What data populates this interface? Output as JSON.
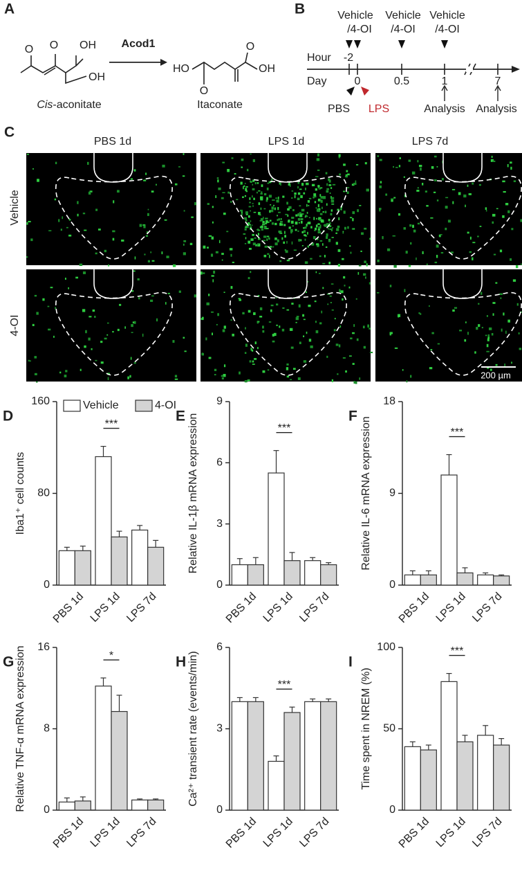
{
  "panel_a": {
    "label": "A",
    "enzyme": "Acod1",
    "substrate_prefix": "Cis",
    "substrate_suffix": "-aconitate",
    "product": "Itaconate",
    "atoms": [
      "O",
      "O",
      "OH",
      "OH",
      "HO",
      "O",
      "O",
      "OH"
    ]
  },
  "panel_b": {
    "label": "B",
    "hour": "Hour",
    "day": "Day",
    "hours": [
      "-2"
    ],
    "days": [
      "0",
      "0.5",
      "1",
      "7"
    ],
    "treatments": [
      [
        "Vehicle",
        "/4-OI"
      ],
      [
        "Vehicle",
        "/4-OI"
      ],
      [
        "Vehicle",
        "/4-OI"
      ]
    ],
    "pbs": "PBS",
    "lps": "LPS",
    "analysis": [
      "Analysis",
      "Analysis"
    ]
  },
  "panel_c": {
    "label": "C",
    "columns": [
      "PBS 1d",
      "LPS 1d",
      "LPS 7d"
    ],
    "rows": [
      "Vehicle",
      "4-OI"
    ],
    "scale_bar": "200 µm"
  },
  "chart_data": [
    {
      "type": "bar",
      "panel": "D",
      "y_label": "Iba1⁺ cell counts",
      "categories": [
        "PBS 1d",
        "LPS 1d",
        "LPS 7d"
      ],
      "series": [
        {
          "name": "Vehicle",
          "color": "#ffffff",
          "values": [
            30,
            112,
            48
          ],
          "errors": [
            3,
            9,
            4
          ]
        },
        {
          "name": "4-OI",
          "color": "#d4d4d4",
          "values": [
            30,
            42,
            33
          ],
          "errors": [
            4,
            5,
            6
          ]
        }
      ],
      "ylim": [
        0,
        160
      ],
      "yticks": [
        0,
        80,
        160
      ],
      "legend": "top-left",
      "annotations": [
        {
          "category": "LPS 1d",
          "text": "***"
        }
      ]
    },
    {
      "type": "bar",
      "panel": "E",
      "y_label": "Relative IL-1β mRNA expression",
      "categories": [
        "PBS 1d",
        "LPS 1d",
        "LPS 7d"
      ],
      "series": [
        {
          "name": "Vehicle",
          "color": "#ffffff",
          "values": [
            1.0,
            5.5,
            1.2
          ],
          "errors": [
            0.3,
            1.1,
            0.15
          ]
        },
        {
          "name": "4-OI",
          "color": "#d4d4d4",
          "values": [
            1.0,
            1.2,
            1.0
          ],
          "errors": [
            0.35,
            0.4,
            0.1
          ]
        }
      ],
      "ylim": [
        0,
        9
      ],
      "yticks": [
        0,
        3,
        6,
        9
      ],
      "annotations": [
        {
          "category": "LPS 1d",
          "text": "***"
        }
      ]
    },
    {
      "type": "bar",
      "panel": "F",
      "y_label": "Relative IL-6 mRNA expression",
      "categories": [
        "PBS 1d",
        "LPS 1d",
        "LPS 7d"
      ],
      "series": [
        {
          "name": "Vehicle",
          "color": "#ffffff",
          "values": [
            1.0,
            10.8,
            1.0
          ],
          "errors": [
            0.4,
            2.0,
            0.2
          ]
        },
        {
          "name": "4-OI",
          "color": "#d4d4d4",
          "values": [
            1.0,
            1.2,
            0.9
          ],
          "errors": [
            0.4,
            0.5,
            0.1
          ]
        }
      ],
      "ylim": [
        0,
        18
      ],
      "yticks": [
        0,
        9,
        18
      ],
      "annotations": [
        {
          "category": "LPS 1d",
          "text": "***"
        }
      ]
    },
    {
      "type": "bar",
      "panel": "G",
      "y_label": "Relative TNF-α mRNA expression",
      "categories": [
        "PBS 1d",
        "LPS 1d",
        "LPS 7d"
      ],
      "series": [
        {
          "name": "Vehicle",
          "color": "#ffffff",
          "values": [
            0.8,
            12.2,
            1.0
          ],
          "errors": [
            0.4,
            0.8,
            0.1
          ]
        },
        {
          "name": "4-OI",
          "color": "#d4d4d4",
          "values": [
            0.9,
            9.7,
            1.0
          ],
          "errors": [
            0.4,
            1.6,
            0.1
          ]
        }
      ],
      "ylim": [
        0,
        16
      ],
      "yticks": [
        0,
        8,
        16
      ],
      "annotations": [
        {
          "category": "LPS 1d",
          "text": "*"
        }
      ]
    },
    {
      "type": "bar",
      "panel": "H",
      "y_label": "Ca²⁺ transient rate (events/min)",
      "categories": [
        "PBS 1d",
        "LPS 1d",
        "LPS 7d"
      ],
      "series": [
        {
          "name": "Vehicle",
          "color": "#ffffff",
          "values": [
            4.0,
            1.8,
            4.0
          ],
          "errors": [
            0.15,
            0.2,
            0.1
          ]
        },
        {
          "name": "4-OI",
          "color": "#d4d4d4",
          "values": [
            4.0,
            3.6,
            4.0
          ],
          "errors": [
            0.15,
            0.2,
            0.1
          ]
        }
      ],
      "ylim": [
        0,
        6
      ],
      "yticks": [
        0,
        3,
        6
      ],
      "annotations": [
        {
          "category": "LPS 1d",
          "text": "***"
        }
      ]
    },
    {
      "type": "bar",
      "panel": "I",
      "y_label": "Time spent in NREM (%)",
      "categories": [
        "PBS 1d",
        "LPS 1d",
        "LPS 7d"
      ],
      "series": [
        {
          "name": "Vehicle",
          "color": "#ffffff",
          "values": [
            39,
            79,
            46
          ],
          "errors": [
            3,
            5,
            6
          ]
        },
        {
          "name": "4-OI",
          "color": "#d4d4d4",
          "values": [
            37,
            42,
            40
          ],
          "errors": [
            3,
            4,
            4
          ]
        }
      ],
      "ylim": [
        0,
        100
      ],
      "yticks": [
        0,
        50,
        100
      ],
      "annotations": [
        {
          "category": "LPS 1d",
          "text": "***"
        }
      ]
    }
  ]
}
